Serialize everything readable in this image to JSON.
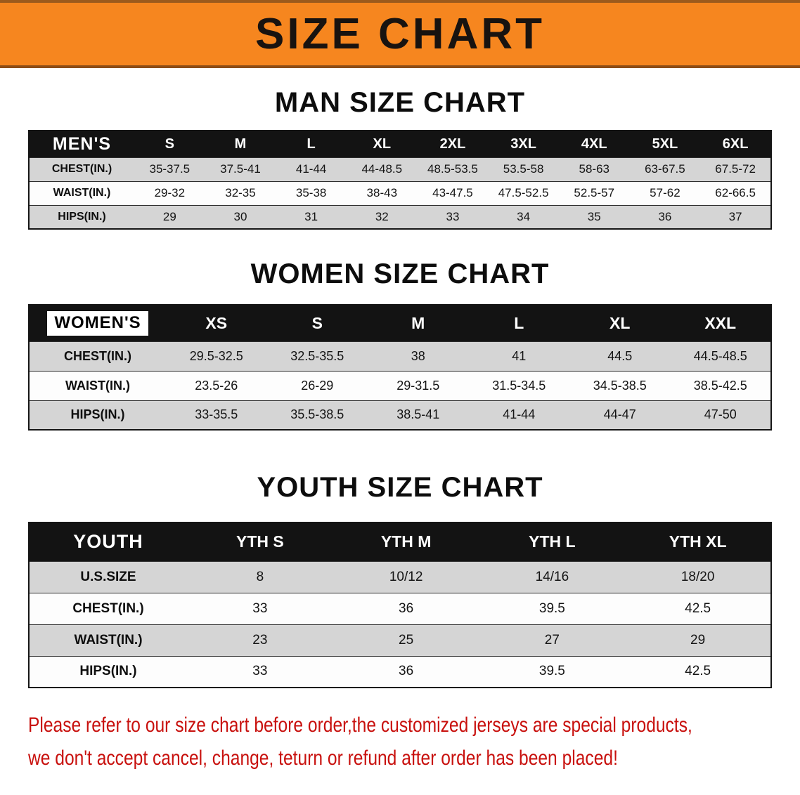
{
  "banner": {
    "title": "SIZE CHART",
    "background_color": "#F6861F"
  },
  "sections": [
    {
      "id": "men",
      "heading": "MAN SIZE CHART",
      "table": {
        "header": [
          "MEN'S",
          "S",
          "M",
          "L",
          "XL",
          "2XL",
          "3XL",
          "4XL",
          "5XL",
          "6XL"
        ],
        "rows": [
          {
            "label": "CHEST(IN.)",
            "values": [
              "35-37.5",
              "37.5-41",
              "41-44",
              "44-48.5",
              "48.5-53.5",
              "53.5-58",
              "58-63",
              "63-67.5",
              "67.5-72"
            ]
          },
          {
            "label": "WAIST(IN.)",
            "values": [
              "29-32",
              "32-35",
              "35-38",
              "38-43",
              "43-47.5",
              "47.5-52.5",
              "52.5-57",
              "57-62",
              "62-66.5"
            ]
          },
          {
            "label": "HIPS(IN.)",
            "values": [
              "29",
              "30",
              "31",
              "32",
              "33",
              "34",
              "35",
              "36",
              "37"
            ]
          }
        ]
      }
    },
    {
      "id": "women",
      "heading": "WOMEN SIZE CHART",
      "table": {
        "header": [
          "WOMEN'S",
          "XS",
          "S",
          "M",
          "L",
          "XL",
          "XXL"
        ],
        "rows": [
          {
            "label": "CHEST(IN.)",
            "values": [
              "29.5-32.5",
              "32.5-35.5",
              "38",
              "41",
              "44.5",
              "44.5-48.5"
            ]
          },
          {
            "label": "WAIST(IN.)",
            "values": [
              "23.5-26",
              "26-29",
              "29-31.5",
              "31.5-34.5",
              "34.5-38.5",
              "38.5-42.5"
            ]
          },
          {
            "label": "HIPS(IN.)",
            "values": [
              "33-35.5",
              "35.5-38.5",
              "38.5-41",
              "41-44",
              "44-47",
              "47-50"
            ]
          }
        ]
      }
    },
    {
      "id": "youth",
      "heading": "YOUTH SIZE CHART",
      "table": {
        "header": [
          "YOUTH",
          "YTH S",
          "YTH M",
          "YTH L",
          "YTH XL"
        ],
        "rows": [
          {
            "label": "U.S.SIZE",
            "values": [
              "8",
              "10/12",
              "14/16",
              "18/20"
            ]
          },
          {
            "label": "CHEST(IN.)",
            "values": [
              "33",
              "36",
              "39.5",
              "42.5"
            ]
          },
          {
            "label": "WAIST(IN.)",
            "values": [
              "23",
              "25",
              "27",
              "29"
            ]
          },
          {
            "label": "HIPS(IN.)",
            "values": [
              "33",
              "36",
              "39.5",
              "42.5"
            ]
          }
        ]
      }
    }
  ],
  "disclaimer": {
    "text_color": "#C8100D",
    "line1": "Please refer to our size chart before order,the customized jerseys are special products,",
    "line2": "we don't accept cancel, change, teturn or refund after order has been placed!"
  }
}
